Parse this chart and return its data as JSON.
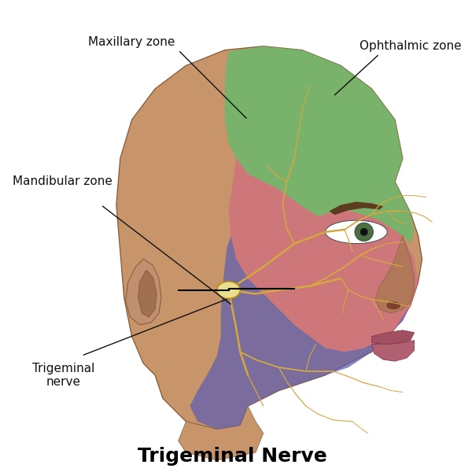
{
  "title": "Trigeminal Nerve",
  "title_fontsize": 18,
  "title_fontweight": "bold",
  "background_color": "#ffffff",
  "skin_color": "#C8956A",
  "skin_shadow": "#A07050",
  "green_color": "#6CB86A",
  "green_alpha": 0.85,
  "purple_color": "#6060B0",
  "purple_alpha": 0.75,
  "red_color": "#D07080",
  "red_alpha": 0.8,
  "nerve_color": "#D4A840",
  "ganglion_color": "#E8E090",
  "labels": {
    "maxillary": "Maxillary zone",
    "ophthalmic": "Ophthalmic zone",
    "mandibular": "Mandibular zone",
    "trigeminal": "Trigeminal\nnerve"
  },
  "label_fontsize": 11,
  "annotation_color": "#111111"
}
